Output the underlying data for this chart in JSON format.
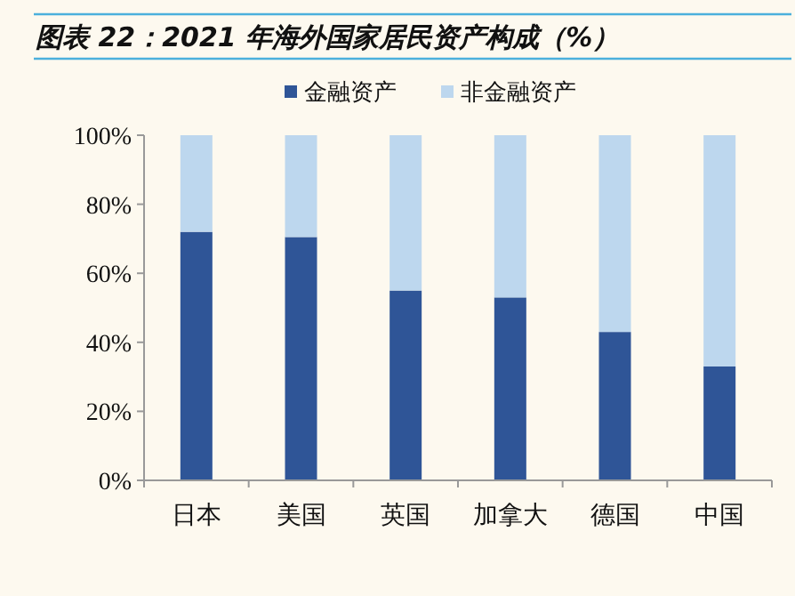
{
  "chart_data": {
    "type": "bar",
    "title": "图表 22：2021 年海外国家居民资产构成（%）",
    "stacked": true,
    "categories": [
      "日本",
      "美国",
      "英国",
      "加拿大",
      "德国",
      "中国"
    ],
    "series": [
      {
        "name": "金融资产",
        "color": "#2f5597",
        "values": [
          72,
          70.5,
          55,
          53,
          43,
          33
        ]
      },
      {
        "name": "非金融资产",
        "color": "#bdd7ee",
        "values": [
          28,
          29.5,
          45,
          47,
          57,
          67
        ]
      }
    ],
    "ylim": [
      0,
      100
    ],
    "yticks": [
      {
        "value": 0,
        "label": "0%"
      },
      {
        "value": 20,
        "label": "20%"
      },
      {
        "value": 40,
        "label": "40%"
      },
      {
        "value": 60,
        "label": "60%"
      },
      {
        "value": 80,
        "label": "80%"
      },
      {
        "value": 100,
        "label": "100%"
      }
    ],
    "grid": false,
    "legend": "top"
  }
}
